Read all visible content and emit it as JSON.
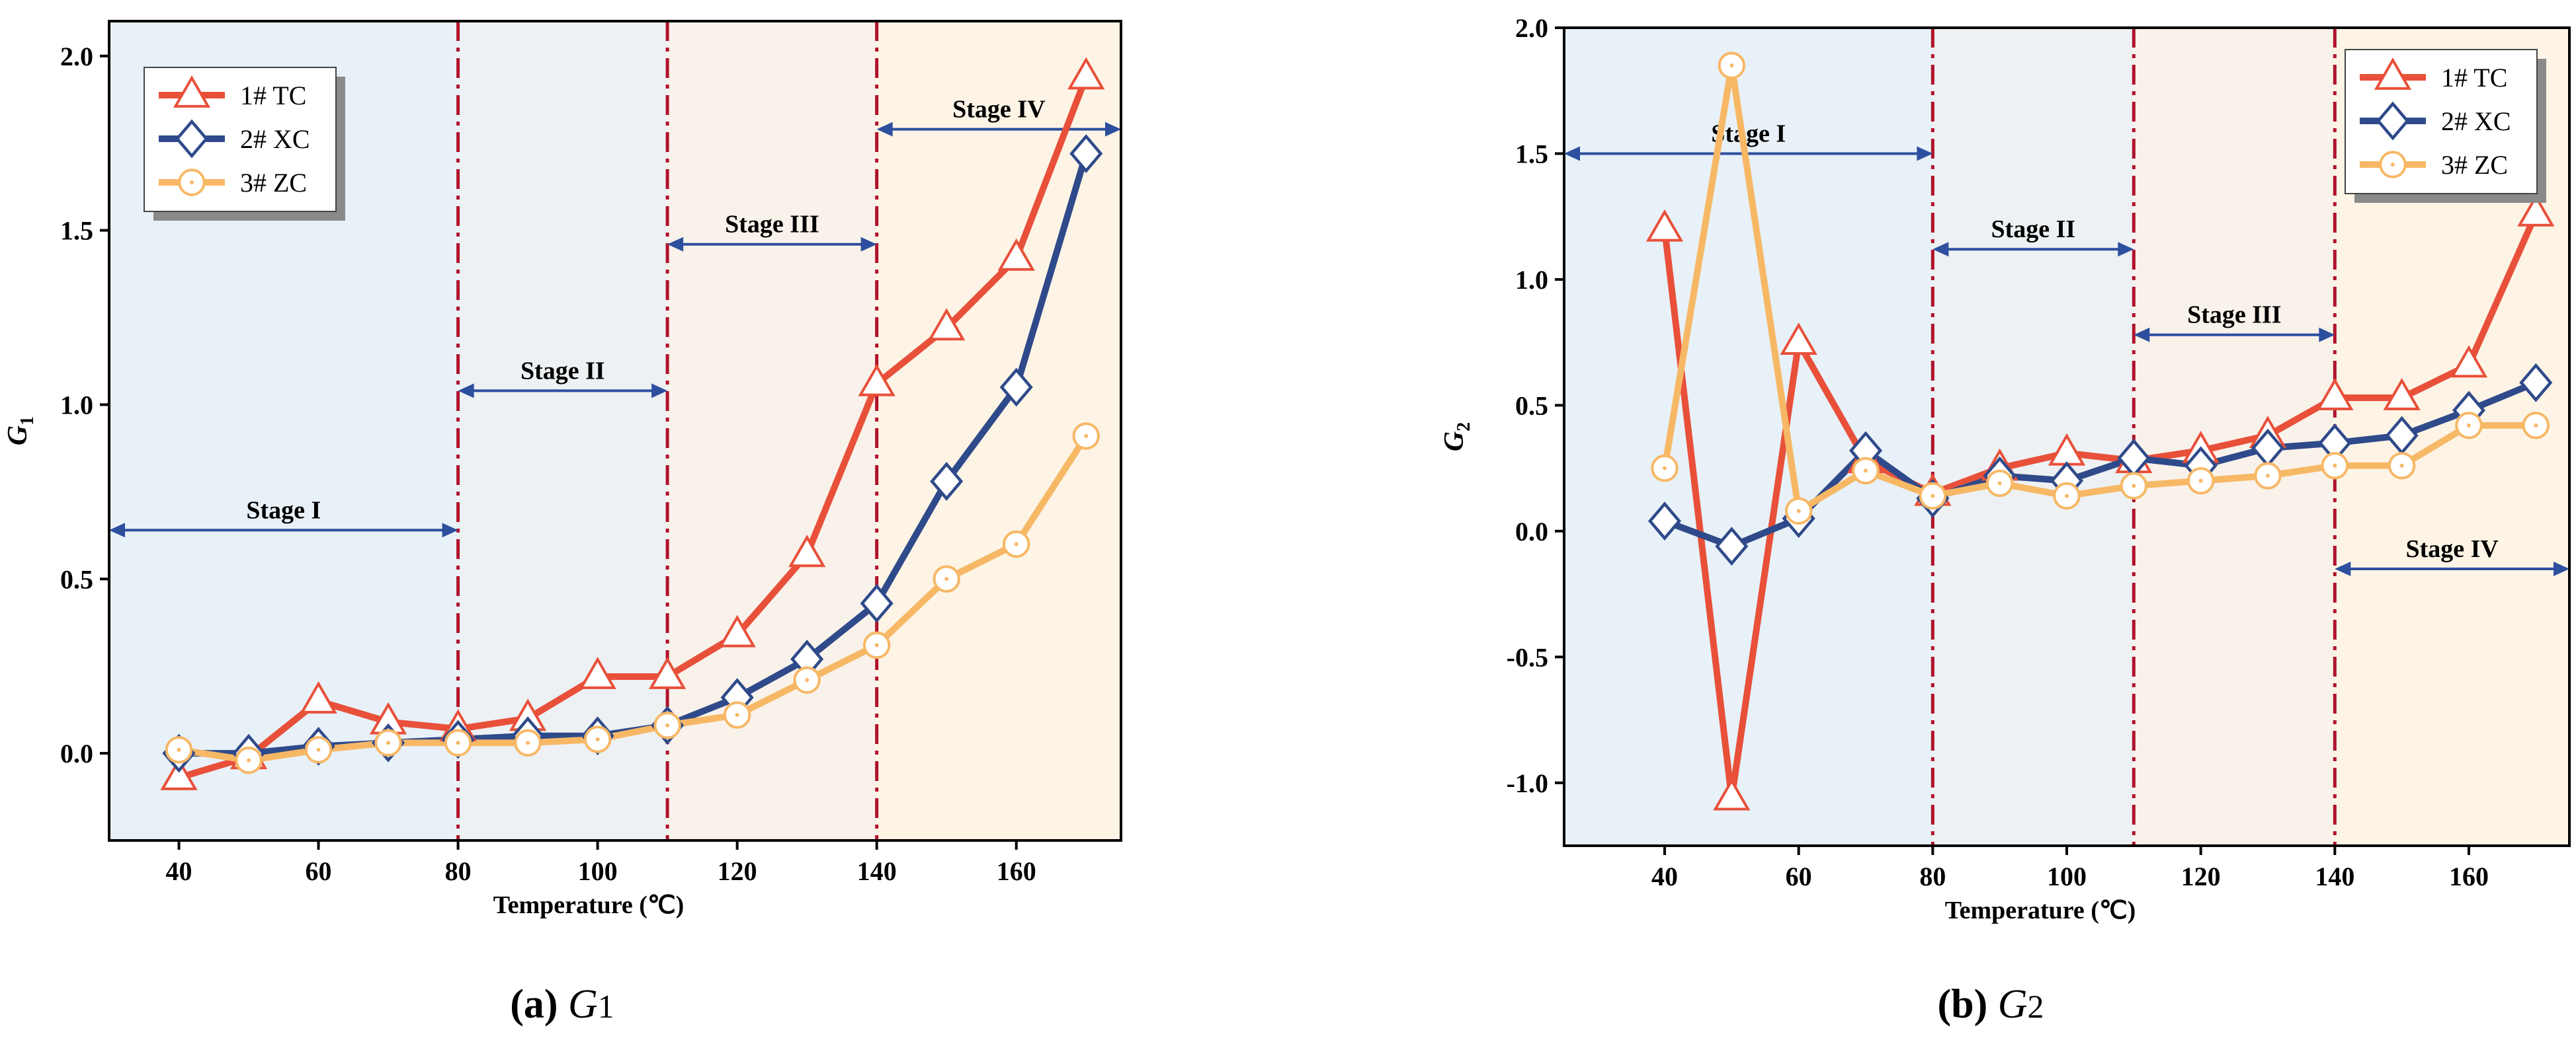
{
  "chart_data": [
    {
      "type": "line",
      "xlabel": "Temperature (℃)",
      "ylabel": "G",
      "ylabel_sub": "1",
      "caption_letter": "(a)",
      "caption_sym": "G",
      "caption_sub": "1",
      "xlim": [
        30,
        175
      ],
      "ylim": [
        -0.25,
        2.1
      ],
      "xticks": [
        40,
        60,
        80,
        100,
        120,
        140,
        160
      ],
      "yticks": [
        0.0,
        0.5,
        1.0,
        1.5,
        2.0
      ],
      "ytick_labels": [
        "0.0",
        "0.5",
        "1.0",
        "1.5",
        "2.0"
      ],
      "x": [
        40,
        50,
        60,
        70,
        80,
        90,
        100,
        110,
        120,
        130,
        140,
        150,
        160,
        170
      ],
      "series": [
        {
          "name": "1# TC",
          "color": "#e8503a",
          "marker": "triangle",
          "values": [
            -0.07,
            -0.01,
            0.15,
            0.09,
            0.07,
            0.1,
            0.22,
            0.22,
            0.34,
            0.57,
            1.06,
            1.22,
            1.42,
            1.94
          ]
        },
        {
          "name": "2# XC",
          "color": "#2f4a8a",
          "marker": "diamond",
          "values": [
            0.0,
            0.0,
            0.02,
            0.03,
            0.04,
            0.05,
            0.05,
            0.08,
            0.16,
            0.27,
            0.43,
            0.78,
            1.05,
            1.72
          ]
        },
        {
          "name": "3# ZC",
          "color": "#f7b866",
          "marker": "circle",
          "values": [
            0.01,
            -0.02,
            0.01,
            0.03,
            0.03,
            0.03,
            0.04,
            0.08,
            0.11,
            0.21,
            0.31,
            0.5,
            0.6,
            0.91
          ]
        }
      ],
      "stage_bounds": [
        80,
        110,
        140
      ],
      "stages": [
        {
          "label": "Stage I",
          "from": 30,
          "to": 80,
          "y": 0.64
        },
        {
          "label": "Stage II",
          "from": 80,
          "to": 110,
          "y": 1.04
        },
        {
          "label": "Stage III",
          "from": 110,
          "to": 140,
          "y": 1.46
        },
        {
          "label": "Stage IV",
          "from": 140,
          "to": 175,
          "y": 1.79
        }
      ],
      "legend_position": "top-left"
    },
    {
      "type": "line",
      "xlabel": "Temperature (℃)",
      "ylabel": "G",
      "ylabel_sub": "2",
      "caption_letter": "(b)",
      "caption_sym": "G",
      "caption_sub": "2",
      "xlim": [
        25,
        175
      ],
      "ylim": [
        -1.25,
        2.0
      ],
      "xticks": [
        40,
        60,
        80,
        100,
        120,
        140,
        160
      ],
      "yticks": [
        -1.0,
        -0.5,
        0.0,
        0.5,
        1.0,
        1.5,
        2.0
      ],
      "ytick_labels": [
        "-1.0",
        "-0.5",
        "0.0",
        "0.5",
        "1.0",
        "1.5",
        "2.0"
      ],
      "x": [
        40,
        50,
        60,
        70,
        80,
        90,
        100,
        110,
        120,
        130,
        140,
        150,
        160,
        170
      ],
      "series": [
        {
          "name": "1# TC",
          "color": "#e8503a",
          "marker": "triangle",
          "values": [
            1.2,
            -1.06,
            0.75,
            0.28,
            0.15,
            0.25,
            0.31,
            0.28,
            0.32,
            0.38,
            0.53,
            0.53,
            0.66,
            1.26
          ]
        },
        {
          "name": "2# XC",
          "color": "#2f4a8a",
          "marker": "diamond",
          "values": [
            0.04,
            -0.06,
            0.05,
            0.32,
            0.13,
            0.22,
            0.2,
            0.29,
            0.26,
            0.33,
            0.35,
            0.38,
            0.48,
            0.59
          ]
        },
        {
          "name": "3# ZC",
          "color": "#f7b866",
          "marker": "circle",
          "values": [
            0.25,
            1.85,
            0.08,
            0.24,
            0.14,
            0.19,
            0.14,
            0.18,
            0.2,
            0.22,
            0.26,
            0.26,
            0.42,
            0.42
          ]
        }
      ],
      "stage_bounds": [
        80,
        110,
        140
      ],
      "stages": [
        {
          "label": "Stage I",
          "from": 25,
          "to": 80,
          "y": 1.5
        },
        {
          "label": "Stage II",
          "from": 80,
          "to": 110,
          "y": 1.12
        },
        {
          "label": "Stage III",
          "from": 110,
          "to": 140,
          "y": 0.78
        },
        {
          "label": "Stage IV",
          "from": 140,
          "to": 175,
          "y": -0.15
        }
      ],
      "legend_position": "top-right"
    }
  ],
  "colors": {
    "stage_bg": [
      "#e8f1f8",
      "#edf1f3",
      "#f9f2ea",
      "#fdf4e6"
    ],
    "stage_line": "#b0132c",
    "arrow": "#2d4f9e"
  }
}
